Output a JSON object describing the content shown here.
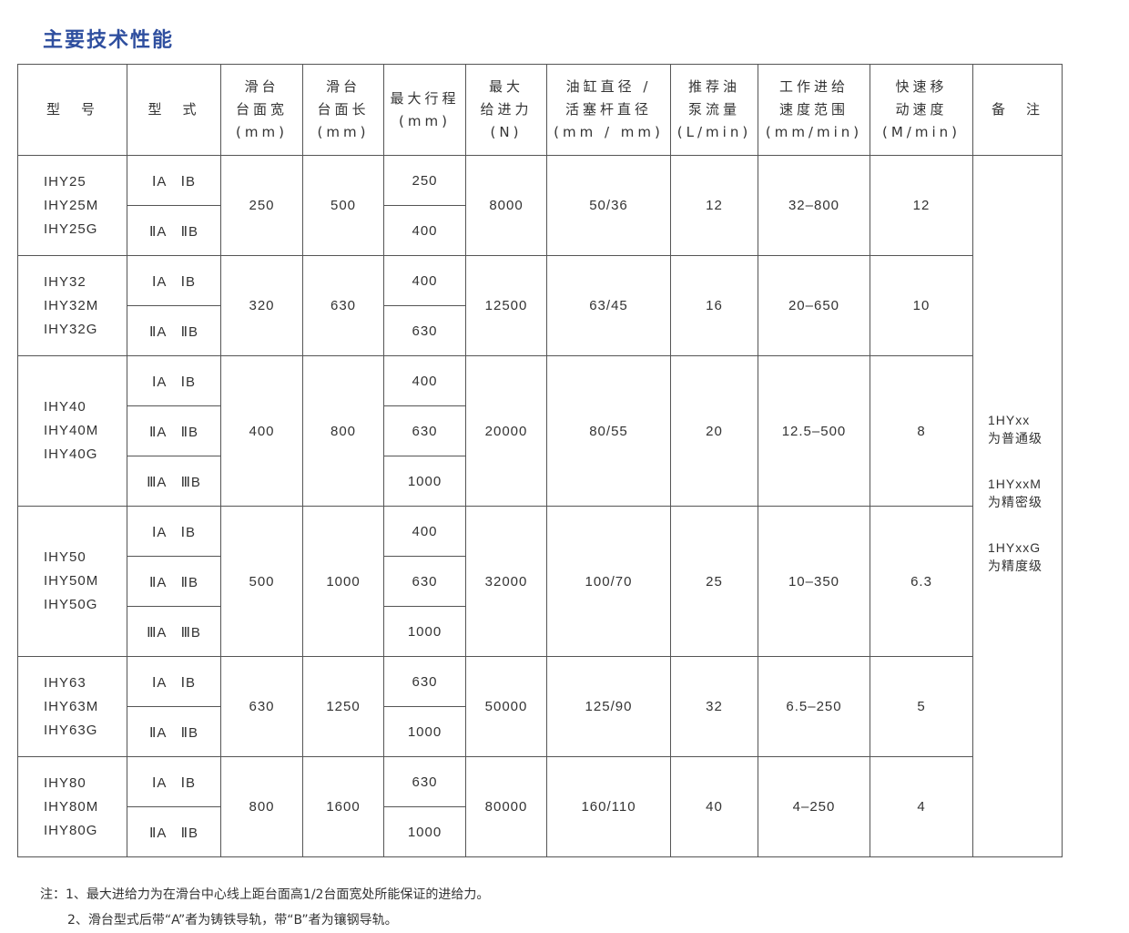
{
  "title": "主要技术性能",
  "headers": [
    [
      "型　号"
    ],
    [
      "型　式"
    ],
    [
      "滑台",
      "台面宽",
      "(mm)"
    ],
    [
      "滑台",
      "台面长",
      "(mm)"
    ],
    [
      "最大行程",
      "(mm)"
    ],
    [
      "最大",
      "给进力",
      "(N)"
    ],
    [
      "油缸直径 /",
      "活塞杆直径",
      "(mm / mm)"
    ],
    [
      "推荐油",
      "泵流量",
      "(L/min)"
    ],
    [
      "工作进给",
      "速度范围",
      "(mm/min)"
    ],
    [
      "快速移",
      "动速度",
      "(M/min)"
    ],
    [
      "备　注"
    ]
  ],
  "rows": [
    {
      "models": [
        "IHY25",
        "IHY25M",
        "IHY25G"
      ],
      "types": [
        "ⅠA　ⅠB",
        "ⅡA　ⅡB"
      ],
      "width": "250",
      "length": "500",
      "strokes": [
        "250",
        "400"
      ],
      "force": "8000",
      "cylinder": "50/36",
      "pump": "12",
      "feed": "32–800",
      "rapid": "12"
    },
    {
      "models": [
        "IHY32",
        "IHY32M",
        "IHY32G"
      ],
      "types": [
        "ⅠA　ⅠB",
        "ⅡA　ⅡB"
      ],
      "width": "320",
      "length": "630",
      "strokes": [
        "400",
        "630"
      ],
      "force": "12500",
      "cylinder": "63/45",
      "pump": "16",
      "feed": "20–650",
      "rapid": "10"
    },
    {
      "models": [
        "IHY40",
        "IHY40M",
        "IHY40G"
      ],
      "types": [
        "ⅠA　ⅠB",
        "ⅡA　ⅡB",
        "ⅢA　ⅢB"
      ],
      "width": "400",
      "length": "800",
      "strokes": [
        "400",
        "630",
        "1000"
      ],
      "force": "20000",
      "cylinder": "80/55",
      "pump": "20",
      "feed": "12.5–500",
      "rapid": "8"
    },
    {
      "models": [
        "IHY50",
        "IHY50M",
        "IHY50G"
      ],
      "types": [
        "ⅠA　ⅠB",
        "ⅡA　ⅡB",
        "ⅢA　ⅢB"
      ],
      "width": "500",
      "length": "1000",
      "strokes": [
        "400",
        "630",
        "1000"
      ],
      "force": "32000",
      "cylinder": "100/70",
      "pump": "25",
      "feed": "10–350",
      "rapid": "6.3"
    },
    {
      "models": [
        "IHY63",
        "IHY63M",
        "IHY63G"
      ],
      "types": [
        "ⅠA　ⅠB",
        "ⅡA　ⅡB"
      ],
      "width": "630",
      "length": "1250",
      "strokes": [
        "630",
        "1000"
      ],
      "force": "50000",
      "cylinder": "125/90",
      "pump": "32",
      "feed": "6.5–250",
      "rapid": "5"
    },
    {
      "models": [
        "IHY80",
        "IHY80M",
        "IHY80G"
      ],
      "types": [
        "ⅠA　ⅠB",
        "ⅡA　ⅡB"
      ],
      "width": "800",
      "length": "1600",
      "strokes": [
        "630",
        "1000"
      ],
      "force": "80000",
      "cylinder": "160/110",
      "pump": "40",
      "feed": "4–250",
      "rapid": "4"
    }
  ],
  "remarks": [
    [
      "1HYxx",
      "为普通级"
    ],
    [
      "1HYxxM",
      "为精密级"
    ],
    [
      "1HYxxG",
      "为精度级"
    ]
  ],
  "notes": [
    "注：1、最大进给力为在滑台中心线上距台面高1/2台面宽处所能保证的进给力。",
    "2、滑台型式后带“A”者为铸铁导轨，带“B”者为镶钢导轨。"
  ]
}
